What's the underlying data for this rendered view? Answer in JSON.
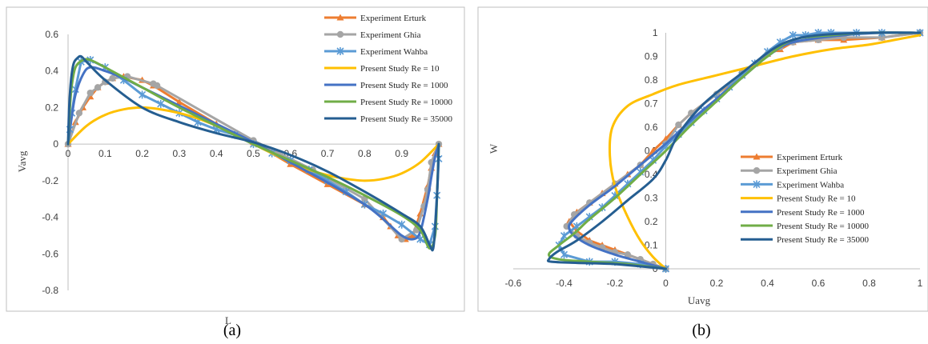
{
  "colors": {
    "erturk": "#ED7D31",
    "ghia": "#A5A5A5",
    "wahba": "#5B9BD5",
    "re10": "#FFC000",
    "re1000": "#4472C4",
    "re10000": "#70AD47",
    "re35000": "#255E91",
    "frame": "#BFBFBF",
    "axis": "#BFBFBF"
  },
  "chart_data": [
    {
      "type": "line",
      "caption": "(a)",
      "xlabel": "L",
      "ylabel": "Vavg",
      "xlim": [
        0,
        1
      ],
      "ylim": [
        -0.8,
        0.6
      ],
      "x_ticks": [
        "0",
        "0.1",
        "0.2",
        "0.3",
        "0.4",
        "0.5",
        "0.6",
        "0.7",
        "0.8",
        "0.9",
        "1"
      ],
      "y_ticks": [
        "0.6",
        "0.4",
        "0.2",
        "0",
        "-0.2",
        "-0.4",
        "-0.6",
        "-0.8"
      ],
      "legend_position": "top-right",
      "series": [
        {
          "name": "Experiment Erturk",
          "color_key": "erturk",
          "marker": "triangle",
          "x": [
            0,
            0.02,
            0.04,
            0.06,
            0.08,
            0.1,
            0.12,
            0.15,
            0.2,
            0.23,
            0.3,
            0.4,
            0.5,
            0.6,
            0.7,
            0.8,
            0.85,
            0.87,
            0.89,
            0.91,
            0.93,
            0.95,
            0.97,
            0.98,
            0.99,
            1
          ],
          "y": [
            0,
            0.12,
            0.2,
            0.26,
            0.31,
            0.34,
            0.36,
            0.37,
            0.35,
            0.32,
            0.23,
            0.11,
            0.01,
            -0.11,
            -0.22,
            -0.33,
            -0.4,
            -0.45,
            -0.5,
            -0.52,
            -0.5,
            -0.38,
            -0.23,
            -0.13,
            -0.05,
            0
          ]
        },
        {
          "name": "Experiment Ghia",
          "color_key": "ghia",
          "marker": "circle",
          "x": [
            0,
            0.03,
            0.06,
            0.08,
            0.1,
            0.12,
            0.16,
            0.23,
            0.24,
            0.5,
            0.66,
            0.8,
            0.9,
            0.94,
            0.96,
            0.97,
            0.98,
            1
          ],
          "y": [
            0,
            0.17,
            0.28,
            0.31,
            0.34,
            0.36,
            0.37,
            0.33,
            0.32,
            0.02,
            -0.14,
            -0.3,
            -0.52,
            -0.47,
            -0.34,
            -0.25,
            -0.1,
            0
          ]
        },
        {
          "name": "Experiment Wahba",
          "color_key": "wahba",
          "marker": "star",
          "x": [
            0.005,
            0.01,
            0.02,
            0.035,
            0.06,
            0.1,
            0.15,
            0.2,
            0.25,
            0.3,
            0.35,
            0.4,
            0.45,
            0.5,
            0.55,
            0.6,
            0.65,
            0.7,
            0.75,
            0.8,
            0.85,
            0.9,
            0.95,
            0.975,
            0.99,
            0.995,
            1
          ],
          "y": [
            0.08,
            0.17,
            0.3,
            0.45,
            0.46,
            0.42,
            0.35,
            0.27,
            0.22,
            0.17,
            0.12,
            0.08,
            0.05,
            0.0,
            -0.05,
            -0.09,
            -0.14,
            -0.2,
            -0.26,
            -0.33,
            -0.38,
            -0.44,
            -0.52,
            -0.55,
            -0.45,
            -0.28,
            -0.08
          ]
        },
        {
          "name": "Present Study Re = 10",
          "color_key": "re10",
          "marker": "none",
          "x": [
            0,
            0.05,
            0.1,
            0.15,
            0.2,
            0.25,
            0.3,
            0.35,
            0.4,
            0.45,
            0.5,
            0.55,
            0.6,
            0.65,
            0.7,
            0.75,
            0.8,
            0.85,
            0.9,
            0.95,
            1
          ],
          "y": [
            0,
            0.1,
            0.16,
            0.19,
            0.2,
            0.19,
            0.17,
            0.14,
            0.1,
            0.05,
            0,
            -0.05,
            -0.1,
            -0.14,
            -0.17,
            -0.19,
            -0.2,
            -0.19,
            -0.16,
            -0.1,
            0
          ]
        },
        {
          "name": "Present Study Re = 1000",
          "color_key": "re1000",
          "marker": "none",
          "x": [
            0,
            0.01,
            0.02,
            0.04,
            0.06,
            0.1,
            0.15,
            0.2,
            0.3,
            0.4,
            0.5,
            0.6,
            0.7,
            0.8,
            0.85,
            0.9,
            0.93,
            0.95,
            0.97,
            0.98,
            0.99,
            1
          ],
          "y": [
            0,
            0.15,
            0.27,
            0.38,
            0.42,
            0.4,
            0.36,
            0.31,
            0.21,
            0.11,
            0.01,
            -0.1,
            -0.21,
            -0.33,
            -0.41,
            -0.5,
            -0.52,
            -0.48,
            -0.3,
            -0.18,
            -0.07,
            0
          ]
        },
        {
          "name": "Present Study Re = 10000",
          "color_key": "re10000",
          "marker": "none",
          "x": [
            0,
            0.005,
            0.01,
            0.02,
            0.04,
            0.06,
            0.1,
            0.2,
            0.3,
            0.4,
            0.5,
            0.6,
            0.7,
            0.8,
            0.9,
            0.95,
            0.975,
            0.99,
            0.995,
            1
          ],
          "y": [
            0,
            0.2,
            0.32,
            0.42,
            0.46,
            0.46,
            0.42,
            0.31,
            0.2,
            0.1,
            0,
            -0.09,
            -0.18,
            -0.28,
            -0.39,
            -0.47,
            -0.57,
            -0.5,
            -0.3,
            0
          ]
        },
        {
          "name": "Present Study Re = 35000",
          "color_key": "re35000",
          "marker": "none",
          "x": [
            0,
            0.003,
            0.008,
            0.015,
            0.025,
            0.035,
            0.05,
            0.1,
            0.2,
            0.3,
            0.4,
            0.5,
            0.6,
            0.7,
            0.8,
            0.9,
            0.95,
            0.975,
            0.985,
            0.992,
            0.997,
            1
          ],
          "y": [
            0,
            0.2,
            0.35,
            0.44,
            0.47,
            0.48,
            0.45,
            0.35,
            0.2,
            0.12,
            0.06,
            0.01,
            -0.06,
            -0.15,
            -0.26,
            -0.38,
            -0.45,
            -0.55,
            -0.57,
            -0.4,
            -0.2,
            0
          ]
        }
      ]
    },
    {
      "type": "line",
      "caption": "(b)",
      "xlabel": "Uavg",
      "ylabel": "W",
      "xlim": [
        -0.6,
        1
      ],
      "ylim": [
        0,
        1
      ],
      "x_ticks": [
        "-0.6",
        "-0.4",
        "-0.2",
        "0",
        "0.2",
        "0.4",
        "0.6",
        "0.8",
        "1"
      ],
      "y_ticks": [
        "1",
        "0.9",
        "0.8",
        "0.7",
        "0.6",
        "0.5",
        "0.4",
        "0.3",
        "0.2",
        "0.1",
        "0"
      ],
      "legend_position": "bottom-right",
      "series": [
        {
          "name": "Experiment Erturk",
          "color_key": "erturk",
          "marker": "triangle",
          "x": [
            0,
            -0.05,
            -0.1,
            -0.15,
            -0.2,
            -0.25,
            -0.3,
            -0.35,
            -0.38,
            -0.35,
            -0.3,
            -0.25,
            -0.2,
            -0.15,
            -0.1,
            -0.05,
            0,
            0.05,
            0.1,
            0.2,
            0.3,
            0.4,
            0.45,
            0.5,
            0.6,
            0.7,
            0.85,
            1
          ],
          "y": [
            0,
            0.02,
            0.04,
            0.06,
            0.08,
            0.1,
            0.12,
            0.16,
            0.2,
            0.24,
            0.28,
            0.32,
            0.36,
            0.4,
            0.44,
            0.5,
            0.55,
            0.61,
            0.66,
            0.74,
            0.82,
            0.91,
            0.93,
            0.96,
            0.97,
            0.97,
            0.98,
            1
          ]
        },
        {
          "name": "Experiment Ghia",
          "color_key": "ghia",
          "marker": "circle",
          "x": [
            0,
            -0.05,
            -0.1,
            -0.15,
            -0.2,
            -0.25,
            -0.3,
            -0.35,
            -0.39,
            -0.36,
            -0.3,
            -0.2,
            -0.1,
            0,
            0.05,
            0.1,
            0.2,
            0.3,
            0.4,
            0.45,
            0.5,
            0.6,
            0.7,
            0.85,
            1
          ],
          "y": [
            0,
            0.02,
            0.04,
            0.06,
            0.07,
            0.09,
            0.11,
            0.14,
            0.18,
            0.23,
            0.28,
            0.36,
            0.44,
            0.53,
            0.61,
            0.66,
            0.74,
            0.83,
            0.91,
            0.94,
            0.96,
            0.97,
            0.98,
            0.98,
            1
          ]
        },
        {
          "name": "Experiment Wahba",
          "color_key": "wahba",
          "marker": "star",
          "x": [
            0,
            -0.1,
            -0.2,
            -0.3,
            -0.4,
            -0.42,
            -0.4,
            -0.35,
            -0.3,
            -0.25,
            -0.2,
            -0.15,
            -0.1,
            -0.05,
            0,
            0.05,
            0.1,
            0.15,
            0.2,
            0.25,
            0.3,
            0.35,
            0.4,
            0.45,
            0.5,
            0.55,
            0.6,
            0.65,
            0.75,
            0.85,
            1
          ],
          "y": [
            0,
            0.02,
            0.03,
            0.03,
            0.06,
            0.1,
            0.14,
            0.18,
            0.22,
            0.26,
            0.31,
            0.36,
            0.41,
            0.46,
            0.52,
            0.57,
            0.62,
            0.67,
            0.72,
            0.77,
            0.82,
            0.87,
            0.92,
            0.96,
            0.99,
            0.99,
            1,
            1,
            1,
            1,
            1
          ]
        },
        {
          "name": "Present Study Re = 10",
          "color_key": "re10",
          "marker": "none",
          "x": [
            0,
            -0.05,
            -0.1,
            -0.15,
            -0.2,
            -0.22,
            -0.21,
            -0.15,
            -0.05,
            0.05,
            0.2,
            0.35,
            0.5,
            0.65,
            0.8,
            0.9,
            1
          ],
          "y": [
            0,
            0.05,
            0.12,
            0.22,
            0.35,
            0.48,
            0.6,
            0.69,
            0.74,
            0.78,
            0.82,
            0.86,
            0.9,
            0.93,
            0.95,
            0.97,
            0.99
          ]
        },
        {
          "name": "Present Study Re = 1000",
          "color_key": "re1000",
          "marker": "none",
          "x": [
            0,
            -0.1,
            -0.2,
            -0.3,
            -0.36,
            -0.38,
            -0.37,
            -0.3,
            -0.2,
            -0.1,
            0,
            0.1,
            0.2,
            0.3,
            0.4,
            0.5,
            0.7,
            0.85,
            1
          ],
          "y": [
            0,
            0.03,
            0.06,
            0.1,
            0.14,
            0.17,
            0.2,
            0.27,
            0.35,
            0.44,
            0.53,
            0.63,
            0.72,
            0.81,
            0.9,
            0.96,
            0.99,
            1,
            1
          ]
        },
        {
          "name": "Present Study Re = 10000",
          "color_key": "re10000",
          "marker": "none",
          "x": [
            0,
            -0.15,
            -0.3,
            -0.42,
            -0.46,
            -0.42,
            -0.36,
            -0.3,
            -0.2,
            -0.1,
            0,
            0.1,
            0.2,
            0.3,
            0.4,
            0.5,
            0.65,
            0.8,
            1
          ],
          "y": [
            0,
            0.02,
            0.03,
            0.04,
            0.06,
            0.1,
            0.15,
            0.21,
            0.3,
            0.4,
            0.5,
            0.61,
            0.71,
            0.81,
            0.9,
            0.97,
            0.99,
            1,
            1
          ]
        },
        {
          "name": "Present Study Re = 35000",
          "color_key": "re35000",
          "marker": "none",
          "x": [
            0,
            -0.2,
            -0.35,
            -0.45,
            -0.46,
            -0.43,
            -0.35,
            -0.25,
            -0.15,
            -0.05,
            0,
            0.05,
            0.15,
            0.3,
            0.42,
            0.5,
            0.6,
            0.8,
            1
          ],
          "y": [
            0,
            0.02,
            0.025,
            0.03,
            0.04,
            0.07,
            0.12,
            0.2,
            0.29,
            0.38,
            0.46,
            0.57,
            0.7,
            0.83,
            0.93,
            0.97,
            0.99,
            1,
            1
          ]
        }
      ]
    }
  ]
}
